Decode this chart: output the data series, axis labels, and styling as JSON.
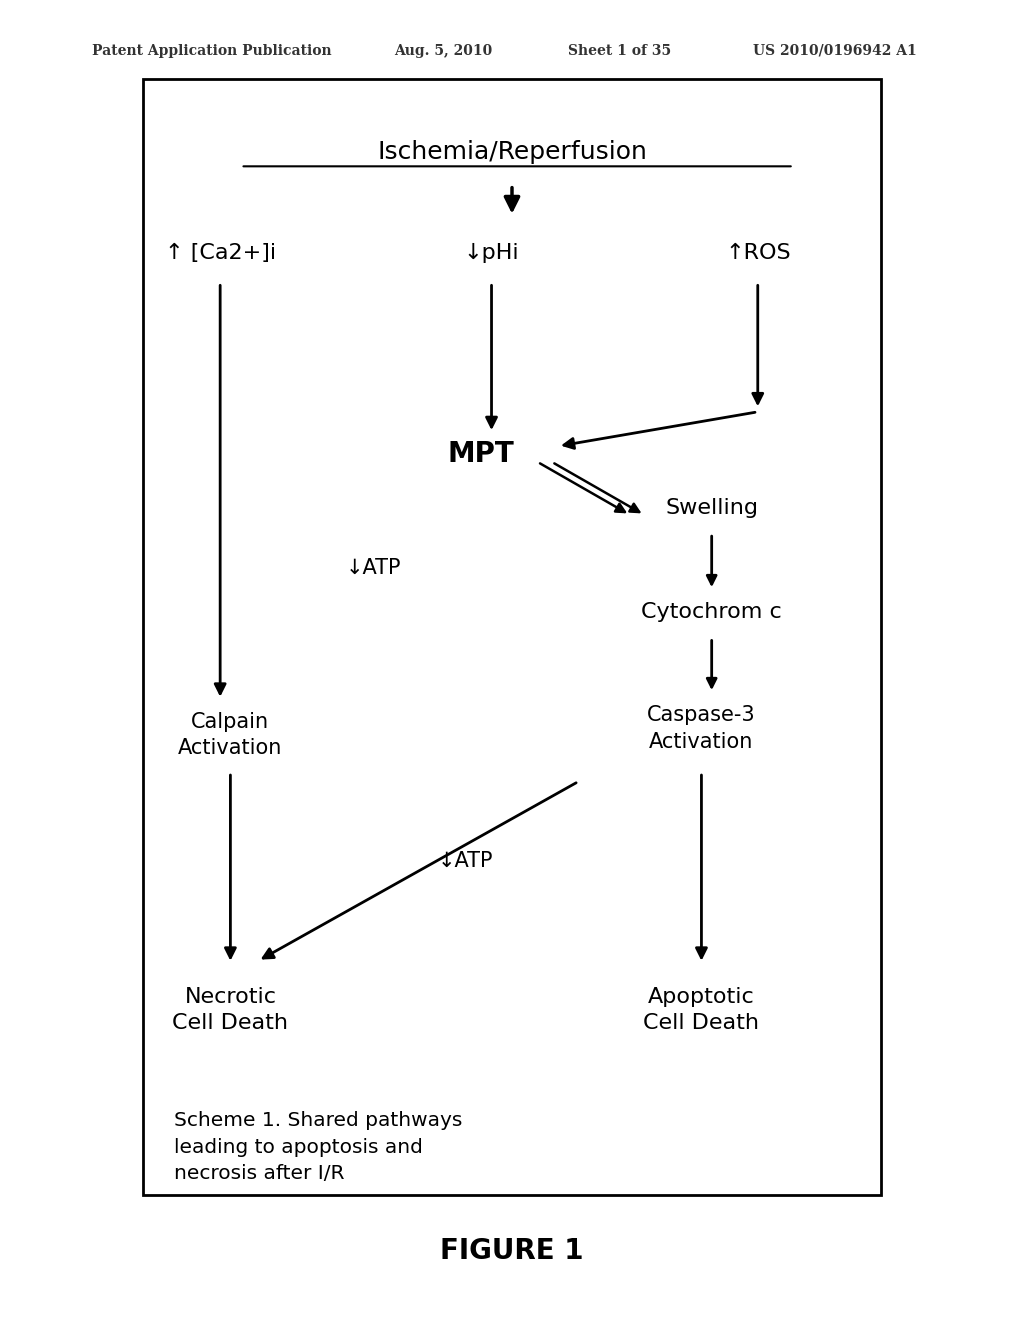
{
  "bg_color": "#ffffff",
  "header_text": "Patent Application Publication",
  "header_date": "Aug. 5, 2010",
  "header_sheet": "Sheet 1 of 35",
  "header_patent": "US 2010/0196942 A1",
  "figure_label": "FIGURE 1",
  "caption": "Scheme 1. Shared pathways\nleading to apoptosis and\nnecrosis after I/R"
}
